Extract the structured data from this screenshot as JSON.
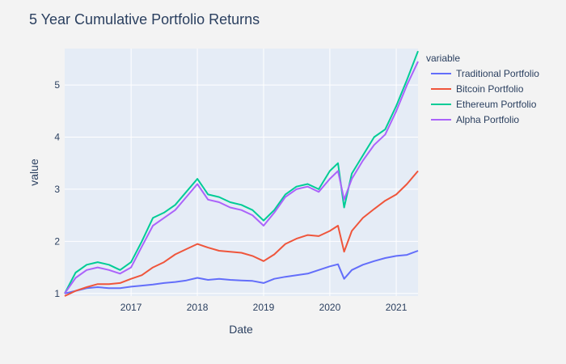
{
  "chart_data": {
    "type": "line",
    "title": "5 Year Cumulative Portfolio Returns",
    "xlabel": "Date",
    "ylabel": "value",
    "legend_title": "variable",
    "legend_position": "right",
    "grid": true,
    "background": "#e5ecf6",
    "paper": "#f3f3f3",
    "x_range": [
      "2016-01-01",
      "2021-05-01"
    ],
    "y_range": [
      0.95,
      5.7
    ],
    "x_ticks": [
      {
        "label": "2017",
        "date": "2017-01-01"
      },
      {
        "label": "2018",
        "date": "2018-01-01"
      },
      {
        "label": "2019",
        "date": "2019-01-01"
      },
      {
        "label": "2020",
        "date": "2020-01-01"
      },
      {
        "label": "2021",
        "date": "2021-01-01"
      }
    ],
    "y_ticks": [
      1,
      2,
      3,
      4,
      5
    ],
    "x": [
      "2016-01-01",
      "2016-03-01",
      "2016-05-01",
      "2016-07-01",
      "2016-09-01",
      "2016-11-01",
      "2017-01-01",
      "2017-03-01",
      "2017-05-01",
      "2017-07-01",
      "2017-09-01",
      "2017-11-01",
      "2018-01-01",
      "2018-03-01",
      "2018-05-01",
      "2018-07-01",
      "2018-09-01",
      "2018-11-01",
      "2019-01-01",
      "2019-03-01",
      "2019-05-01",
      "2019-07-01",
      "2019-09-01",
      "2019-11-01",
      "2020-01-01",
      "2020-02-15",
      "2020-03-20",
      "2020-05-01",
      "2020-07-01",
      "2020-09-01",
      "2020-11-01",
      "2021-01-01",
      "2021-03-01",
      "2021-05-01"
    ],
    "series": [
      {
        "name": "Traditional Portfolio",
        "color": "#636efa",
        "values": [
          1.0,
          1.05,
          1.1,
          1.12,
          1.1,
          1.1,
          1.13,
          1.15,
          1.17,
          1.2,
          1.22,
          1.25,
          1.3,
          1.26,
          1.28,
          1.26,
          1.25,
          1.24,
          1.2,
          1.28,
          1.32,
          1.35,
          1.38,
          1.45,
          1.52,
          1.56,
          1.28,
          1.45,
          1.55,
          1.62,
          1.68,
          1.72,
          1.74,
          1.82
        ]
      },
      {
        "name": "Bitcoin Portfolio",
        "color": "#ef553b",
        "values": [
          0.95,
          1.05,
          1.12,
          1.18,
          1.18,
          1.2,
          1.28,
          1.35,
          1.5,
          1.6,
          1.75,
          1.85,
          1.95,
          1.88,
          1.82,
          1.8,
          1.78,
          1.72,
          1.62,
          1.75,
          1.95,
          2.05,
          2.12,
          2.1,
          2.2,
          2.3,
          1.8,
          2.2,
          2.45,
          2.62,
          2.78,
          2.9,
          3.1,
          3.35
        ]
      },
      {
        "name": "Ethereum Portfolio",
        "color": "#00cc96",
        "values": [
          1.0,
          1.4,
          1.55,
          1.6,
          1.55,
          1.45,
          1.6,
          2.0,
          2.45,
          2.55,
          2.7,
          2.95,
          3.2,
          2.9,
          2.85,
          2.75,
          2.7,
          2.6,
          2.4,
          2.6,
          2.9,
          3.05,
          3.1,
          3.0,
          3.35,
          3.5,
          2.65,
          3.3,
          3.65,
          4.0,
          4.15,
          4.6,
          5.1,
          5.65
        ]
      },
      {
        "name": "Alpha Portfolio",
        "color": "#ab63fa",
        "values": [
          1.0,
          1.3,
          1.45,
          1.5,
          1.45,
          1.38,
          1.5,
          1.9,
          2.3,
          2.45,
          2.6,
          2.85,
          3.1,
          2.8,
          2.75,
          2.65,
          2.6,
          2.5,
          2.3,
          2.55,
          2.85,
          3.0,
          3.05,
          2.95,
          3.2,
          3.35,
          2.8,
          3.2,
          3.55,
          3.85,
          4.05,
          4.5,
          5.0,
          5.45
        ]
      }
    ]
  }
}
